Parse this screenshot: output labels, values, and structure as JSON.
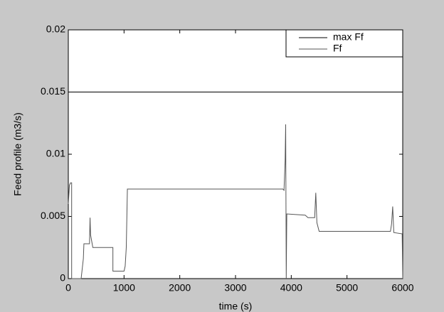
{
  "chart_data": {
    "type": "line",
    "xlabel": "time (s)",
    "ylabel": "Feed profile (m3/s)",
    "xlim": [
      0,
      6000
    ],
    "xticks": [
      0,
      1000,
      2000,
      3000,
      4000,
      5000,
      6000
    ],
    "ylim": [
      0,
      0.02
    ],
    "yticks": [
      0,
      0.005,
      0.01,
      0.015,
      0.02
    ],
    "legend": "upper right",
    "series": [
      {
        "name": "max Ff",
        "color": "#000000",
        "x": [
          0,
          6000
        ],
        "values": [
          0.015,
          0.015
        ]
      },
      {
        "name": "Ff",
        "color": "#555555",
        "x": [
          0,
          20,
          40,
          60,
          60,
          230,
          250,
          270,
          280,
          380,
          390,
          400,
          420,
          440,
          800,
          800,
          1000,
          1020,
          1040,
          1060,
          3850,
          3870,
          3890,
          3900,
          3910,
          3920,
          4250,
          4300,
          4420,
          4440,
          4460,
          4500,
          5780,
          5800,
          5820,
          5840,
          5990,
          6000
        ],
        "values": [
          0.006,
          0.0075,
          0.0077,
          0.0077,
          0,
          0,
          0.0008,
          0.0016,
          0.0028,
          0.0028,
          0.0049,
          0.0035,
          0.003,
          0.0025,
          0.0025,
          0.0006,
          0.0006,
          0.001,
          0.0025,
          0.0072,
          0.0072,
          0.0071,
          0.0095,
          0.0124,
          0,
          0.0052,
          0.0051,
          0.0049,
          0.0049,
          0.0069,
          0.0045,
          0.0038,
          0.0038,
          0.0044,
          0.0058,
          0.0037,
          0.0036,
          0
        ]
      }
    ]
  }
}
